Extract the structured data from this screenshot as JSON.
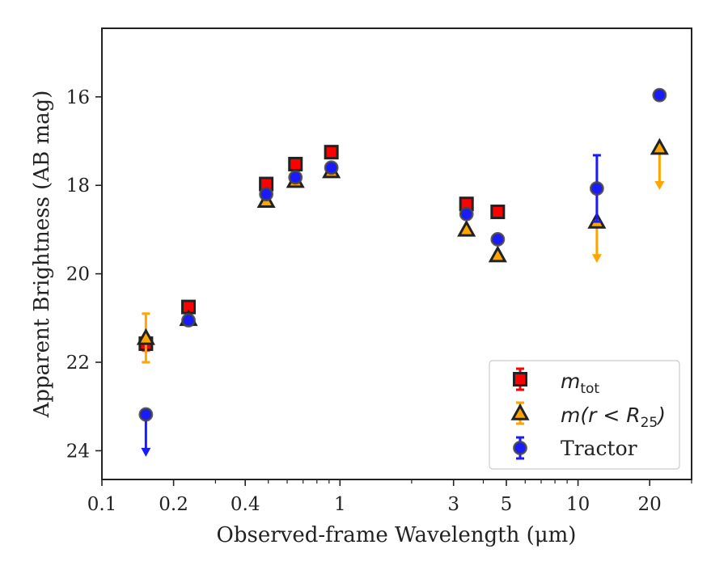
{
  "chart_data": {
    "type": "scatter",
    "title": "",
    "xlabel": "Observed-frame Wavelength (μm)",
    "ylabel": "Apparent Brightness (AB mag)",
    "xscale": "log",
    "xlim": [
      0.1,
      30
    ],
    "ylim": [
      24.65,
      14.45
    ],
    "y_inverted": true,
    "grid": false,
    "xticks": [
      {
        "value": 0.1,
        "label": "0.1"
      },
      {
        "value": 0.2,
        "label": "0.2"
      },
      {
        "value": 0.4,
        "label": "0.4"
      },
      {
        "value": 1,
        "label": "1"
      },
      {
        "value": 3,
        "label": "3"
      },
      {
        "value": 5,
        "label": "5"
      },
      {
        "value": 10,
        "label": "10"
      },
      {
        "value": 20,
        "label": "20"
      }
    ],
    "yticks": [
      {
        "value": 16,
        "label": "16"
      },
      {
        "value": 18,
        "label": "18"
      },
      {
        "value": 20,
        "label": "20"
      },
      {
        "value": 22,
        "label": "22"
      },
      {
        "value": 24,
        "label": "24"
      }
    ],
    "legend_position": "bottom-right",
    "series": [
      {
        "name": "m_tot",
        "marker": "square",
        "color": "#ff0000",
        "points": [
          {
            "x": 0.153,
            "y": 21.58,
            "yerr": 0.15
          },
          {
            "x": 0.231,
            "y": 20.75,
            "yerr": 0.1
          },
          {
            "x": 0.49,
            "y": 17.97,
            "yerr": 0.05
          },
          {
            "x": 0.65,
            "y": 17.52,
            "yerr": 0.05
          },
          {
            "x": 0.92,
            "y": 17.25,
            "yerr": 0.05
          },
          {
            "x": 3.4,
            "y": 18.42,
            "yerr": 0.05
          },
          {
            "x": 4.6,
            "y": 18.6,
            "yerr": 0.05
          }
        ]
      },
      {
        "name": "m(r < R25)",
        "marker": "triangle",
        "color": "#ffa500",
        "points": [
          {
            "x": 0.153,
            "y": 21.45,
            "yerr": 0.55
          },
          {
            "x": 0.231,
            "y": 21.02,
            "yerr": 0.05
          },
          {
            "x": 0.49,
            "y": 18.35,
            "yerr": 0.05
          },
          {
            "x": 0.65,
            "y": 17.9,
            "yerr": 0.05
          },
          {
            "x": 0.92,
            "y": 17.68,
            "yerr": 0.05
          },
          {
            "x": 3.4,
            "y": 19.0,
            "yerr": 0.05
          },
          {
            "x": 4.6,
            "y": 19.58,
            "yerr": 0.05
          },
          {
            "x": 12.0,
            "y": 18.82,
            "upper_limit": true,
            "arrow_to": 19.7
          },
          {
            "x": 22.0,
            "y": 17.15,
            "upper_limit": true,
            "arrow_to": 18.05
          }
        ]
      },
      {
        "name": "Tractor",
        "marker": "circle",
        "color": "#1a1aff",
        "points": [
          {
            "x": 0.153,
            "y": 23.18,
            "upper_limit": true,
            "arrow_to": 24.08
          },
          {
            "x": 0.231,
            "y": 21.05,
            "yerr": 0.05
          },
          {
            "x": 0.49,
            "y": 18.2,
            "yerr": 0.05
          },
          {
            "x": 0.65,
            "y": 17.82,
            "yerr": 0.05
          },
          {
            "x": 0.92,
            "y": 17.6,
            "yerr": 0.05
          },
          {
            "x": 3.4,
            "y": 18.65,
            "yerr": 0.05
          },
          {
            "x": 4.6,
            "y": 19.22,
            "yerr": 0.05
          },
          {
            "x": 12.0,
            "y": 18.07,
            "yerr": 0.75
          },
          {
            "x": 22.0,
            "y": 15.96,
            "yerr": 0.1
          }
        ]
      }
    ]
  },
  "legend": {
    "item1": {
      "base": "m",
      "sub": "tot"
    },
    "item2": {
      "base": "m(r < R",
      "sub": "25",
      "tail": ")"
    },
    "item3": {
      "label": "Tractor"
    }
  }
}
